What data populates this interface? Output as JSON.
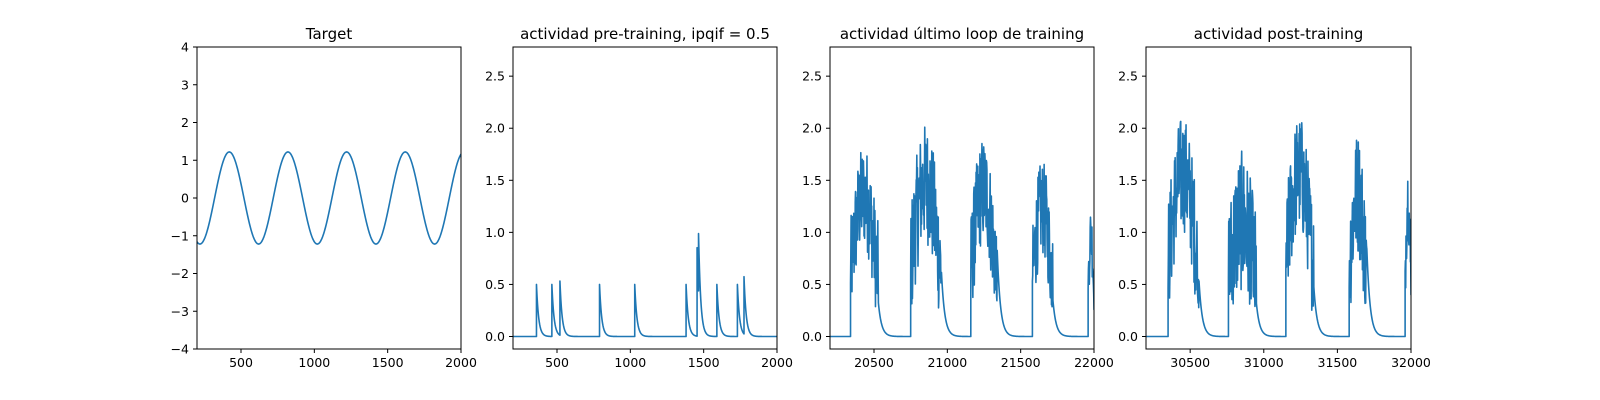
{
  "figure": {
    "background": "#ffffff",
    "line_color": "#1f77b4"
  },
  "chart_data": [
    {
      "type": "line",
      "title": "Target",
      "xlim": [
        200,
        2000
      ],
      "ylim": [
        -4,
        4
      ],
      "xticks": [
        500,
        1000,
        1500,
        2000
      ],
      "yticks": [
        -4,
        -3,
        -2,
        -1,
        0,
        1,
        2,
        3,
        4
      ],
      "signal": {
        "kind": "sine",
        "amplitude": 1.22,
        "period": 400,
        "x_at_trough": 220
      },
      "series": [
        {
          "x": [
            220,
            420,
            620,
            820,
            1020,
            1220,
            1420,
            1620,
            1820,
            2000
          ],
          "y": [
            -1.22,
            1.22,
            -1.22,
            1.22,
            -1.22,
            1.22,
            -1.22,
            1.22,
            -1.22,
            1.16
          ]
        }
      ]
    },
    {
      "type": "line",
      "title": "actividad pre-training, ipqif = 0.5",
      "xlim": [
        200,
        2000
      ],
      "ylim": [
        -0.12,
        2.78
      ],
      "xticks": [
        500,
        1000,
        1500,
        2000
      ],
      "yticks": [
        0.0,
        0.5,
        1.0,
        1.5,
        2.0,
        2.5
      ],
      "ytick_labels": [
        "0.0",
        "0.5",
        "1.0",
        "1.5",
        "2.0",
        "2.5"
      ],
      "signal": {
        "kind": "spikes",
        "baseline": 0.0,
        "decay": 15
      },
      "series": [
        {
          "x": [
            360,
            465,
            520,
            790,
            1030,
            1380,
            1455,
            1465,
            1590,
            1730,
            1775
          ],
          "y": [
            0.5,
            0.5,
            0.52,
            0.5,
            0.5,
            0.5,
            0.85,
            0.55,
            0.5,
            0.5,
            0.55
          ]
        }
      ]
    },
    {
      "type": "line",
      "title": "actividad último loop de training",
      "xlim": [
        20200,
        22000
      ],
      "ylim": [
        -0.12,
        2.78
      ],
      "xticks": [
        20500,
        21000,
        21500,
        22000
      ],
      "yticks": [
        0.0,
        0.5,
        1.0,
        1.5,
        2.0,
        2.5
      ],
      "ytick_labels": [
        "0.0",
        "0.5",
        "1.0",
        "1.5",
        "2.0",
        "2.5"
      ],
      "signal": {
        "kind": "bursts",
        "baseline": 0.0,
        "decay": 22
      },
      "series": [
        {
          "bursts": [
            {
              "start": 20340,
              "end": 20530,
              "peak": 1.9,
              "mean": 1.2
            },
            {
              "start": 20750,
              "end": 20960,
              "peak": 2.12,
              "mean": 1.3
            },
            {
              "start": 21160,
              "end": 21340,
              "peak": 1.98,
              "mean": 1.25
            },
            {
              "start": 21580,
              "end": 21720,
              "peak": 1.75,
              "mean": 1.1
            },
            {
              "start": 21960,
              "end": 22000,
              "peak": 1.3,
              "mean": 0.9
            }
          ]
        }
      ]
    },
    {
      "type": "line",
      "title": "actividad post-training",
      "xlim": [
        30200,
        32000
      ],
      "ylim": [
        -0.12,
        2.78
      ],
      "xticks": [
        30500,
        31000,
        31500,
        32000
      ],
      "yticks": [
        0.0,
        0.5,
        1.0,
        1.5,
        2.0,
        2.5
      ],
      "ytick_labels": [
        "0.0",
        "0.5",
        "1.0",
        "1.5",
        "2.0",
        "2.5"
      ],
      "signal": {
        "kind": "bursts",
        "baseline": 0.0,
        "decay": 22
      },
      "series": [
        {
          "bursts": [
            {
              "start": 30350,
              "end": 30560,
              "peak": 2.2,
              "mean": 1.4
            },
            {
              "start": 30760,
              "end": 30950,
              "peak": 1.87,
              "mean": 0.9
            },
            {
              "start": 31150,
              "end": 31340,
              "peak": 2.2,
              "mean": 1.4
            },
            {
              "start": 31580,
              "end": 31700,
              "peak": 2.05,
              "mean": 1.2
            },
            {
              "start": 31960,
              "end": 32000,
              "peak": 1.75,
              "mean": 1.2
            }
          ]
        }
      ]
    }
  ]
}
